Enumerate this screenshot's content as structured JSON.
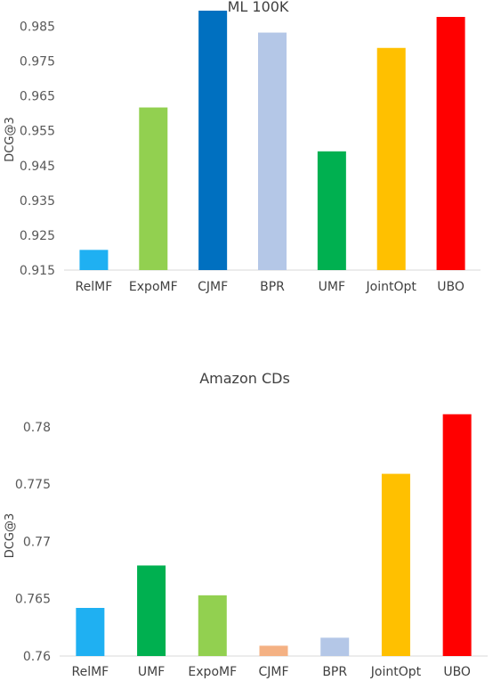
{
  "chart_data": [
    {
      "type": "bar",
      "title": "ML 100K",
      "xlabel": "",
      "ylabel": "DCG@3",
      "ylim": [
        0.915,
        0.99
      ],
      "yticks": [
        "0.915",
        "0.925",
        "0.935",
        "0.945",
        "0.955",
        "0.965",
        "0.975",
        "0.985"
      ],
      "categories": [
        "RelMF",
        "ExpoMF",
        "CJMF",
        "BPR",
        "UMF",
        "JointOpt",
        "UBO"
      ],
      "values": [
        0.9208,
        0.9617,
        0.9895,
        0.9832,
        0.9491,
        0.9788,
        0.9877
      ],
      "colors": [
        "#1fb0f2",
        "#92d050",
        "#0070c0",
        "#b4c7e7",
        "#00b050",
        "#ffc000",
        "#ff0000"
      ],
      "grid": false,
      "legend": "none"
    },
    {
      "type": "bar",
      "title": "Amazon CDs",
      "xlabel": "",
      "ylabel": "DCG@3",
      "ylim": [
        0.76,
        0.781
      ],
      "yticks": [
        "0.76",
        "0.765",
        "0.77",
        "0.775",
        "0.78"
      ],
      "categories": [
        "RelMF",
        "UMF",
        "ExpoMF",
        "CJMF",
        "BPR",
        "JointOpt",
        "UBO"
      ],
      "values": [
        0.7642,
        0.7679,
        0.7653,
        0.7609,
        0.7616,
        0.7759,
        0.7811
      ],
      "colors": [
        "#1fb0f2",
        "#00b050",
        "#92d050",
        "#f4b183",
        "#b4c7e7",
        "#ffc000",
        "#ff0000"
      ],
      "grid": false,
      "legend": "none"
    }
  ]
}
